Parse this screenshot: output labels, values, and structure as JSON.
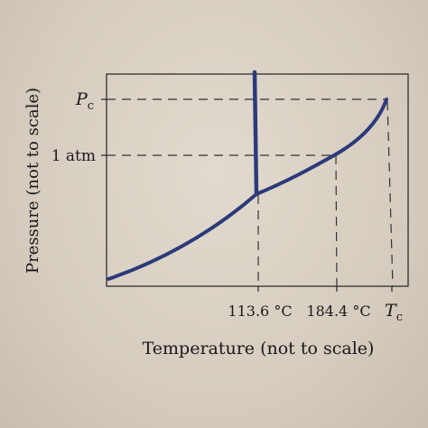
{
  "chart_data": {
    "type": "line",
    "xlabel": "Temperature (not to scale)",
    "ylabel": "Pressure (not to scale)",
    "y_tick_labels": {
      "pc_main": "P",
      "pc_sub": "c",
      "one_atm": "1 atm"
    },
    "x_tick_labels": {
      "t1": "113.6 °C",
      "t2": "184.4 °C",
      "tc_main": "T",
      "tc_sub": "c"
    },
    "series": [
      {
        "values_x": [
          "start",
          "113.6 °C",
          "184.4 °C",
          "T_c"
        ],
        "values_y": [
          "low",
          "triple",
          "1 atm",
          "P_c"
        ]
      }
    ],
    "grid": false,
    "line_color": "#2b3a7a"
  }
}
